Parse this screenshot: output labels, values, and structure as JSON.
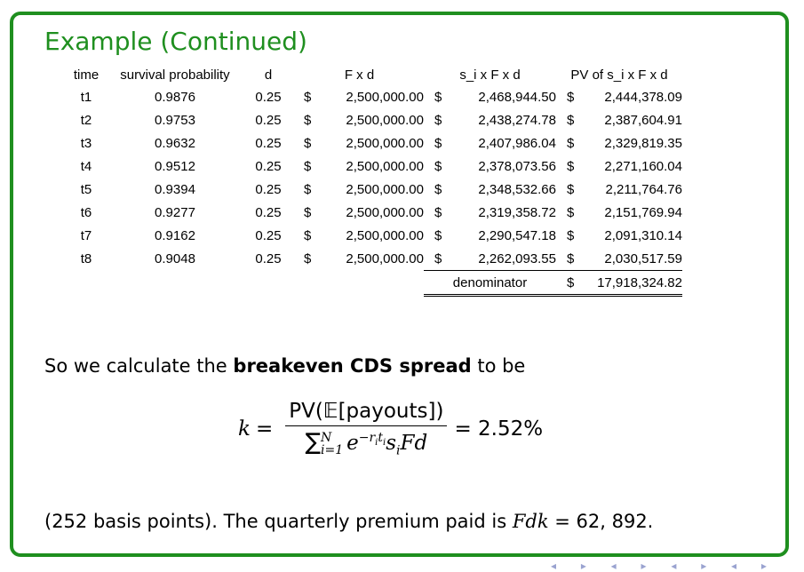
{
  "title": "Example (Continued)",
  "table": {
    "headers": [
      "time",
      "survival probability",
      "d",
      "F x d",
      "s_i x F x d",
      "PV of s_i x F x d"
    ],
    "rows": [
      {
        "time": "t1",
        "sp": "0.9876",
        "d": "0.25",
        "c1": "$",
        "f": "2,500,000.00",
        "c2": "$",
        "s": "2,468,944.50",
        "c3": "$",
        "pv": "2,444,378.09"
      },
      {
        "time": "t2",
        "sp": "0.9753",
        "d": "0.25",
        "c1": "$",
        "f": "2,500,000.00",
        "c2": "$",
        "s": "2,438,274.78",
        "c3": "$",
        "pv": "2,387,604.91"
      },
      {
        "time": "t3",
        "sp": "0.9632",
        "d": "0.25",
        "c1": "$",
        "f": "2,500,000.00",
        "c2": "$",
        "s": "2,407,986.04",
        "c3": "$",
        "pv": "2,329,819.35"
      },
      {
        "time": "t4",
        "sp": "0.9512",
        "d": "0.25",
        "c1": "$",
        "f": "2,500,000.00",
        "c2": "$",
        "s": "2,378,073.56",
        "c3": "$",
        "pv": "2,271,160.04"
      },
      {
        "time": "t5",
        "sp": "0.9394",
        "d": "0.25",
        "c1": "$",
        "f": "2,500,000.00",
        "c2": "$",
        "s": "2,348,532.66",
        "c3": "$",
        "pv": "2,211,764.76"
      },
      {
        "time": "t6",
        "sp": "0.9277",
        "d": "0.25",
        "c1": "$",
        "f": "2,500,000.00",
        "c2": "$",
        "s": "2,319,358.72",
        "c3": "$",
        "pv": "2,151,769.94"
      },
      {
        "time": "t7",
        "sp": "0.9162",
        "d": "0.25",
        "c1": "$",
        "f": "2,500,000.00",
        "c2": "$",
        "s": "2,290,547.18",
        "c3": "$",
        "pv": "2,091,310.14"
      },
      {
        "time": "t8",
        "sp": "0.9048",
        "d": "0.25",
        "c1": "$",
        "f": "2,500,000.00",
        "c2": "$",
        "s": "2,262,093.55",
        "c3": "$",
        "pv": "2,030,517.59"
      }
    ],
    "denominator_label": "denominator",
    "denominator_currency": "$",
    "denominator_value": "17,918,324.82"
  },
  "body": {
    "line1_before": "So we calculate the ",
    "line1_bold": "breakeven CDS spread",
    "line1_after": " to be",
    "formula_k": "k",
    "formula_eq": "=",
    "formula_num": "PV(𝔼[payouts])",
    "formula_sum": "∑",
    "formula_sum_sup": "N",
    "formula_sum_sub": "i=1",
    "formula_e": "e",
    "formula_exp": "−r",
    "formula_exp_sub_i": "i",
    "formula_exp_t": "t",
    "formula_exp_sub_i2": "i",
    "formula_s": "s",
    "formula_s_sub": "i",
    "formula_fd": "Fd",
    "formula_result": "= 2.52%",
    "line2_before": "(252 basis points).  The quarterly premium paid is ",
    "line2_var": "Fdk",
    "line2_after": " = 62, 892."
  },
  "nav_icons": "◂ ▸ ◂ ▸ ◂ ▸ ◂ ▸"
}
